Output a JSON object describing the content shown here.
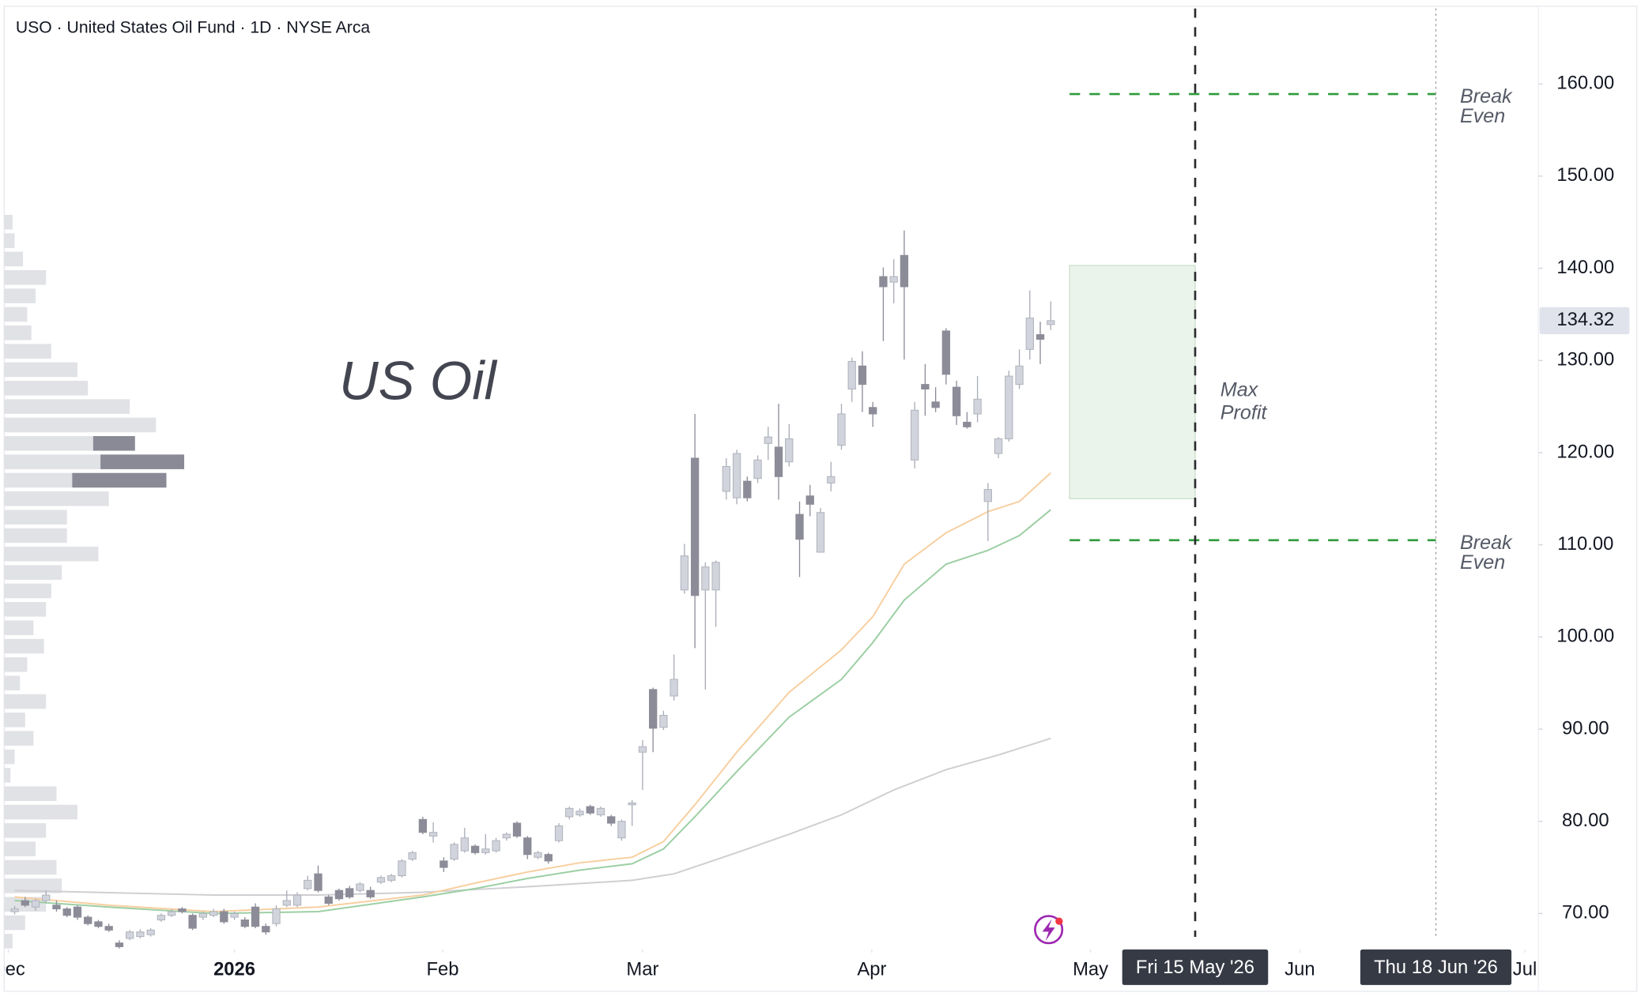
{
  "chart_data": {
    "type": "candlestick",
    "title": "USO · United States Oil Fund · 1D · NYSE Arca",
    "watermark": "US Oil",
    "xlim": [
      -1,
      145.6
    ],
    "xticks": [
      {
        "value": -0.6,
        "label": "Dec"
      },
      {
        "value": 21,
        "label": "2026",
        "bold": true
      },
      {
        "value": 40.9,
        "label": "Feb"
      },
      {
        "value": 60,
        "label": "Mar"
      },
      {
        "value": 81.9,
        "label": "Apr"
      },
      {
        "value": 102.8,
        "label": "May"
      },
      {
        "value": 122.8,
        "label": "Jun"
      },
      {
        "value": 144.3,
        "label": "Jul"
      }
    ],
    "ylim": [
      66.1,
      168.2
    ],
    "yticks": [
      {
        "value": 70,
        "label": "70.00"
      },
      {
        "value": 80,
        "label": "80.00"
      },
      {
        "value": 90,
        "label": "90.00"
      },
      {
        "value": 100,
        "label": "100.00"
      },
      {
        "value": 110,
        "label": "110.00"
      },
      {
        "value": 120,
        "label": "120.00"
      },
      {
        "value": 130,
        "label": "130.00"
      },
      {
        "value": 140,
        "label": "140.00"
      },
      {
        "value": 150,
        "label": "150.00"
      },
      {
        "value": 160,
        "label": "160.00"
      }
    ],
    "up_color": "#d1d4dc",
    "down_color": "#8c8c99",
    "open": [
      70.2,
      71.4,
      70.7,
      71.4,
      70.9,
      70.5,
      70.7,
      69.6,
      69.1,
      68.6,
      66.8,
      67.3,
      67.5,
      67.7,
      69.3,
      69.8,
      70.5,
      69.8,
      69.6,
      69.8,
      70.2,
      69.6,
      69.3,
      70.7,
      68.6,
      68.9,
      70.9,
      70.9,
      72.7,
      74.3,
      71.8,
      72.5,
      72.7,
      72.5,
      72.5,
      73.4,
      73.6,
      74.1,
      75.9,
      80.2,
      78.4,
      75.7,
      75.9,
      76.8,
      77.3,
      76.6,
      76.8,
      78.2,
      79.8,
      78.2,
      76.1,
      76.4,
      77.9,
      80.5,
      80.7,
      81.6,
      80.7,
      80.5,
      78.2,
      81.8,
      87.5,
      94.3,
      90.2,
      93.6,
      105.1,
      119.4,
      105.1,
      105.1,
      115.8,
      115.1,
      116.9,
      117.2,
      121.0,
      120.6,
      119.0,
      113.3,
      115.3,
      109.2,
      116.7,
      120.8,
      126.9,
      129.4,
      124.9,
      139.1,
      138.5,
      141.4,
      119.2,
      127.4,
      125.5,
      133.2,
      127.1,
      123.3,
      124.2,
      114.7,
      119.9,
      121.5,
      127.4,
      131.2,
      132.8,
      133.9
    ],
    "high": [
      70.8,
      71.8,
      71.6,
      72.5,
      71.4,
      70.7,
      70.9,
      69.8,
      69.3,
      68.9,
      67.1,
      68.2,
      68.3,
      68.4,
      70.0,
      70.5,
      70.7,
      70.0,
      70.2,
      70.5,
      70.5,
      70.2,
      69.6,
      71.1,
      68.9,
      70.9,
      72.5,
      72.3,
      74.1,
      75.2,
      72.0,
      72.7,
      73.0,
      73.4,
      72.9,
      74.1,
      74.3,
      75.9,
      76.8,
      80.5,
      79.9,
      76.1,
      77.7,
      79.3,
      77.5,
      78.6,
      78.2,
      78.8,
      80.0,
      78.4,
      76.8,
      76.6,
      79.8,
      81.6,
      81.4,
      81.8,
      81.6,
      80.7,
      80.2,
      82.3,
      88.8,
      94.5,
      92.0,
      98.1,
      110.1,
      124.2,
      108.1,
      108.3,
      119.4,
      120.3,
      117.4,
      119.7,
      122.8,
      125.3,
      123.1,
      114.7,
      116.5,
      114.0,
      119.0,
      125.3,
      130.3,
      131.0,
      125.5,
      140.1,
      141.0,
      144.1,
      125.5,
      129.6,
      127.1,
      133.5,
      127.8,
      124.4,
      128.3,
      116.7,
      121.7,
      128.9,
      131.2,
      137.6,
      134.2,
      136.4
    ],
    "low": [
      69.9,
      70.7,
      70.3,
      71.1,
      70.2,
      69.6,
      69.3,
      68.7,
      68.4,
      68.0,
      66.2,
      67.1,
      67.3,
      67.5,
      69.1,
      69.6,
      70.0,
      68.2,
      69.3,
      69.6,
      68.9,
      69.3,
      68.4,
      68.4,
      67.7,
      68.6,
      70.7,
      70.7,
      72.5,
      72.3,
      70.9,
      71.4,
      71.6,
      72.3,
      71.6,
      73.2,
      73.4,
      73.9,
      75.7,
      78.6,
      77.7,
      74.5,
      75.7,
      76.6,
      76.4,
      76.4,
      76.6,
      77.9,
      78.2,
      75.9,
      75.9,
      75.4,
      77.7,
      80.2,
      80.5,
      80.7,
      80.5,
      79.5,
      77.9,
      79.5,
      83.4,
      87.5,
      89.9,
      93.1,
      104.7,
      98.8,
      94.3,
      101.1,
      114.9,
      114.4,
      114.7,
      116.7,
      119.2,
      114.9,
      118.5,
      106.5,
      113.1,
      109.2,
      115.8,
      120.3,
      125.5,
      124.4,
      122.8,
      132.1,
      136.2,
      130.1,
      118.3,
      124.0,
      124.4,
      127.4,
      123.0,
      122.6,
      123.3,
      110.4,
      119.4,
      121.2,
      126.9,
      130.1,
      129.6,
      133.3
    ],
    "close": [
      70.5,
      70.9,
      71.4,
      72.0,
      70.5,
      69.8,
      69.6,
      68.9,
      68.6,
      68.2,
      66.4,
      68.0,
      68.0,
      68.2,
      69.8,
      70.2,
      70.2,
      68.4,
      70.0,
      70.2,
      69.1,
      70.0,
      68.6,
      68.6,
      68.0,
      70.5,
      71.4,
      72.0,
      73.6,
      72.5,
      71.1,
      71.6,
      71.8,
      73.2,
      71.8,
      73.9,
      74.1,
      75.7,
      76.6,
      78.8,
      78.8,
      75.0,
      77.5,
      78.2,
      76.6,
      77.0,
      77.9,
      78.6,
      78.4,
      76.4,
      76.6,
      75.7,
      79.5,
      81.4,
      81.1,
      80.9,
      81.4,
      79.8,
      80.0,
      82.0,
      88.1,
      90.1,
      91.5,
      95.4,
      108.8,
      104.5,
      107.6,
      108.1,
      118.5,
      119.9,
      115.1,
      119.2,
      121.7,
      117.4,
      121.5,
      110.6,
      114.4,
      113.5,
      117.4,
      124.2,
      129.9,
      127.4,
      124.2,
      138.0,
      139.1,
      138.0,
      124.6,
      126.9,
      124.9,
      128.5,
      124.0,
      122.8,
      125.8,
      116.0,
      121.5,
      128.3,
      129.4,
      134.6,
      132.3,
      134.32
    ],
    "moving_averages": [
      {
        "color": "#cfcfd3",
        "x": [
          0,
          19,
          29,
          39,
          49,
          59,
          63,
          69,
          74,
          79,
          84,
          89,
          94,
          99
        ],
        "values": [
          72.5,
          72.0,
          72.0,
          72.3,
          72.9,
          73.6,
          74.3,
          76.6,
          78.6,
          80.7,
          83.4,
          85.6,
          87.2,
          89.0
        ]
      },
      {
        "color": "#f7cfa0",
        "x": [
          0,
          9,
          19,
          29,
          39,
          44,
          49,
          54,
          59,
          62,
          65,
          69,
          74,
          79,
          82,
          85,
          89,
          93,
          96,
          99
        ],
        "values": [
          71.8,
          70.9,
          70.2,
          70.7,
          72.0,
          73.3,
          74.5,
          75.5,
          76.1,
          77.8,
          81.8,
          87.5,
          94.0,
          98.6,
          102.2,
          107.9,
          111.3,
          113.6,
          114.7,
          117.8
        ]
      },
      {
        "color": "#9ccfa4",
        "x": [
          0,
          9,
          19,
          29,
          39,
          44,
          49,
          54,
          59,
          62,
          65,
          69,
          74,
          79,
          82,
          85,
          89,
          93,
          96,
          99
        ],
        "values": [
          71.4,
          70.7,
          70.0,
          70.2,
          71.8,
          72.7,
          73.8,
          74.7,
          75.4,
          77.0,
          80.5,
          85.4,
          91.3,
          95.4,
          99.4,
          104.0,
          107.9,
          109.4,
          111.0,
          113.8
        ]
      }
    ],
    "volume_profile": {
      "prices": [
        67,
        69,
        71,
        73,
        75,
        77,
        79,
        81,
        83,
        85,
        87,
        89,
        91,
        93,
        95,
        97,
        99,
        101,
        103,
        105,
        107,
        109,
        111,
        113,
        115,
        117,
        119,
        121,
        123,
        125,
        127,
        129,
        131,
        133,
        135,
        137,
        139,
        141,
        143,
        145
      ],
      "series": [
        {
          "color": "#e1e2e6",
          "values": [
            8,
            20,
            40,
            55,
            50,
            30,
            40,
            70,
            50,
            6,
            10,
            28,
            20,
            40,
            15,
            22,
            38,
            28,
            40,
            45,
            55,
            90,
            60,
            60,
            100,
            65,
            92,
            85,
            145,
            120,
            80,
            70,
            45,
            26,
            22,
            30,
            40,
            18,
            10,
            8
          ]
        },
        {
          "color": "#8a8a96",
          "values": [
            0,
            0,
            0,
            0,
            0,
            0,
            0,
            0,
            0,
            0,
            0,
            0,
            0,
            0,
            0,
            0,
            0,
            0,
            0,
            0,
            0,
            0,
            0,
            0,
            0,
            90,
            80,
            40,
            0,
            0,
            0,
            0,
            0,
            0,
            0,
            0,
            0,
            0,
            0,
            0
          ]
        }
      ]
    },
    "date_markers": [
      {
        "x": 112.8,
        "label": "Fri 15 May '26",
        "color": "#2a2a2e",
        "dash": "9 9",
        "width": 2
      },
      {
        "x": 135.8,
        "label": "Thu 18 Jun '26",
        "color": "#9a9aa2",
        "dash": "2 3",
        "width": 1
      }
    ],
    "break_even": {
      "color": "#2e9a3a",
      "x": [
        100.8,
        135.8
      ],
      "levels": [
        158.9,
        110.5
      ],
      "label": [
        "Break",
        "Even"
      ]
    },
    "max_profit": {
      "label": [
        "Max",
        "Profit"
      ],
      "x": [
        100.8,
        112.8
      ],
      "y": [
        115.0,
        140.3
      ],
      "color": "#eaf4ea",
      "stroke": "#c9dfc9"
    }
  }
}
